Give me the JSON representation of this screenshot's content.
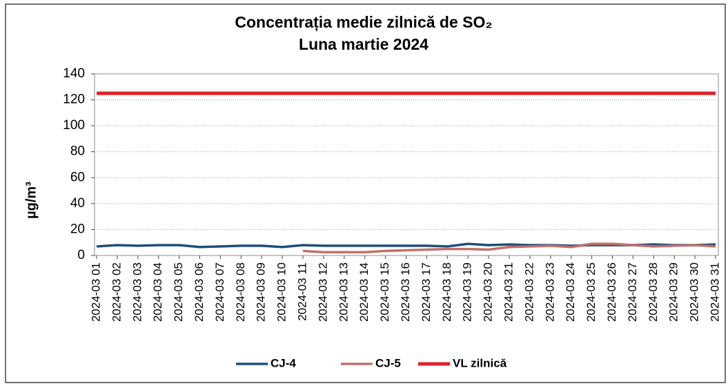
{
  "chart_data": {
    "type": "line",
    "title": "Concentrația medie zilnică de SO₂",
    "subtitle": "Luna martie 2024",
    "y_label": "µg/m³",
    "categories": [
      "2024-03 01",
      "2024-03 02",
      "2024-03 03",
      "2024-03 04",
      "2024-03 05",
      "2024-03 06",
      "2024-03 07",
      "2024-03 08",
      "2024-03 09",
      "2024-03 10",
      "2024-03 11",
      "2024-03 12",
      "2024-03 13",
      "2024-03 14",
      "2024-03 15",
      "2024-03 16",
      "2024-03 17",
      "2024-03 18",
      "2024-03 19",
      "2024-03 20",
      "2024-03 21",
      "2024-03 22",
      "2024-03 23",
      "2024-03 24",
      "2024-03 25",
      "2024-03 26",
      "2024-03 27",
      "2024-03 28",
      "2024-03 29",
      "2024-03 30",
      "2024-03 31"
    ],
    "series": [
      {
        "name": "CJ-4",
        "color": "#1f4e79",
        "values": [
          7,
          8,
          7.5,
          8,
          8,
          6.5,
          7,
          7.5,
          7.5,
          6.5,
          8,
          7.5,
          7.5,
          7.5,
          7.5,
          7.5,
          7.5,
          7,
          9,
          8,
          8.5,
          8,
          8,
          7.5,
          8,
          8,
          8,
          8.5,
          8,
          8,
          8.5
        ]
      },
      {
        "name": "CJ-5",
        "color": "#c0706a",
        "values": [
          null,
          null,
          null,
          null,
          null,
          null,
          null,
          null,
          null,
          null,
          3.5,
          2.5,
          2.5,
          2.5,
          3.5,
          4,
          4.5,
          5,
          5,
          4.5,
          6.5,
          7,
          7.5,
          6.5,
          9,
          9,
          8,
          7,
          7.5,
          8,
          7
        ]
      },
      {
        "name": "VL zilnică",
        "color": "#e3202a",
        "values": [
          125,
          125,
          125,
          125,
          125,
          125,
          125,
          125,
          125,
          125,
          125,
          125,
          125,
          125,
          125,
          125,
          125,
          125,
          125,
          125,
          125,
          125,
          125,
          125,
          125,
          125,
          125,
          125,
          125,
          125,
          125
        ]
      }
    ],
    "ylim": [
      0,
      140
    ],
    "yticks": [
      0,
      20,
      40,
      60,
      80,
      100,
      120,
      140
    ],
    "grid": true,
    "legend": "bottom"
  }
}
